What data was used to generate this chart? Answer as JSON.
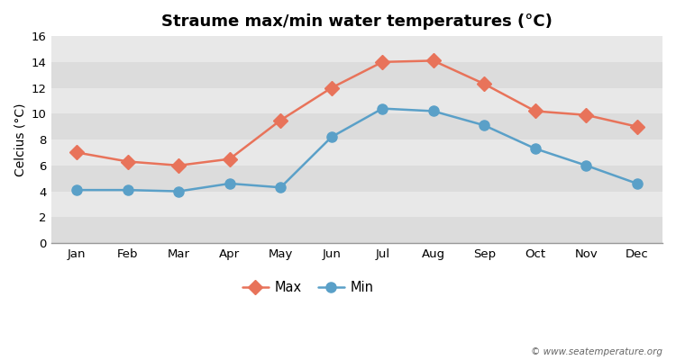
{
  "title": "Straume max/min water temperatures (°C)",
  "ylabel": "Celcius (°C)",
  "months": [
    "Jan",
    "Feb",
    "Mar",
    "Apr",
    "May",
    "Jun",
    "Jul",
    "Aug",
    "Sep",
    "Oct",
    "Nov",
    "Dec"
  ],
  "max_temps": [
    7.0,
    6.3,
    6.0,
    6.5,
    9.5,
    12.0,
    14.0,
    14.1,
    12.3,
    10.2,
    9.9,
    9.0
  ],
  "min_temps": [
    4.1,
    4.1,
    4.0,
    4.6,
    4.3,
    8.2,
    10.4,
    10.2,
    9.1,
    7.3,
    6.0,
    4.6
  ],
  "max_color": "#e8735a",
  "min_color": "#5aa0c8",
  "band_colors": [
    "#dcdcdc",
    "#e8e8e8"
  ],
  "ylim": [
    0,
    16
  ],
  "yticks": [
    0,
    2,
    4,
    6,
    8,
    10,
    12,
    14,
    16
  ],
  "title_fontsize": 13,
  "axis_label_fontsize": 10,
  "legend_labels": [
    "Max",
    "Min"
  ],
  "watermark": "© www.seatemperature.org",
  "linewidth": 1.8,
  "markersize_diamond": 8,
  "markersize_circle": 8
}
